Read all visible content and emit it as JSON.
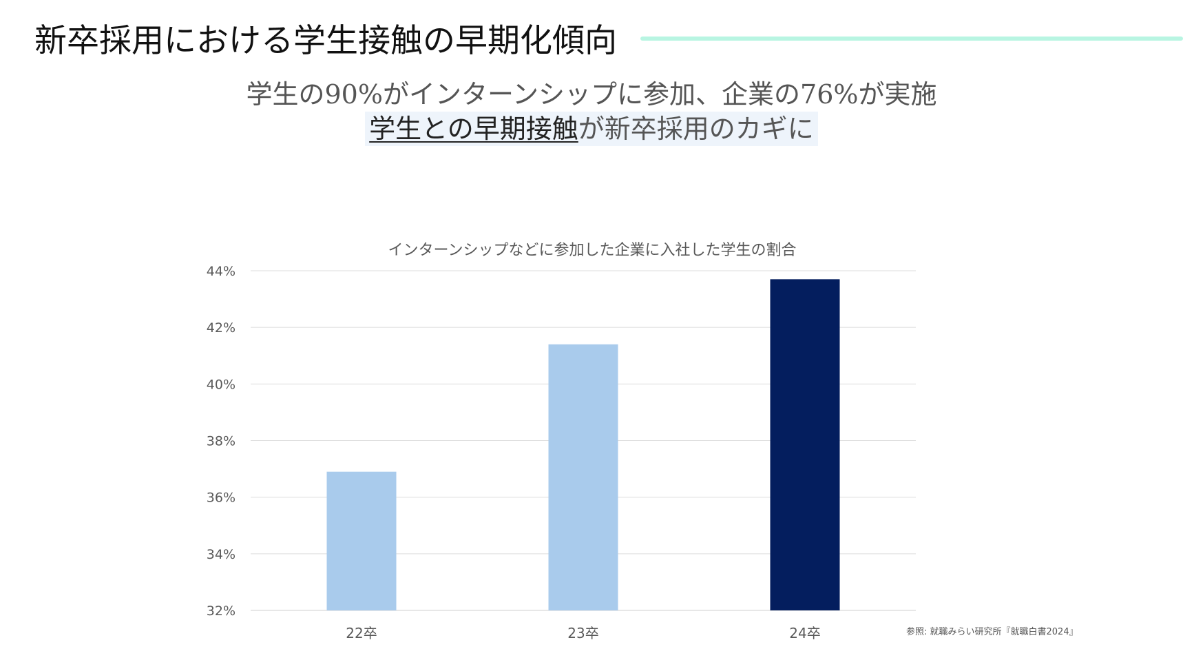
{
  "slide": {
    "title": "新卒採用における学生接触の早期化傾向",
    "subtitle_line1": "学生の90%がインターンシップに参加、企業の76%が実施",
    "subtitle_line2_emphasis": "学生との早期接触",
    "subtitle_line2_rest": "が新卒採用のカギに",
    "source": "参照: 就職みらい研究所『就職白書2024』",
    "colors": {
      "title_rule": "#b8f5e2",
      "subtitle_highlight": "#eef4fb"
    }
  },
  "chart_data": {
    "type": "bar",
    "title": "インターンシップなどに参加した企業に入社した学生の割合",
    "categories": [
      "22卒",
      "23卒",
      "24卒"
    ],
    "values": [
      36.9,
      41.4,
      43.7
    ],
    "ylim": [
      32,
      44
    ],
    "yticks": [
      "44%",
      "42%",
      "40%",
      "38%",
      "36%",
      "34%",
      "32%"
    ],
    "ytick_values": [
      44,
      42,
      40,
      38,
      36,
      34,
      32
    ],
    "xlabel": "",
    "ylabel": "",
    "grid": true,
    "legend": "none",
    "bar_colors": [
      "#a9cbec",
      "#a9cbec",
      "#041e5e"
    ]
  }
}
